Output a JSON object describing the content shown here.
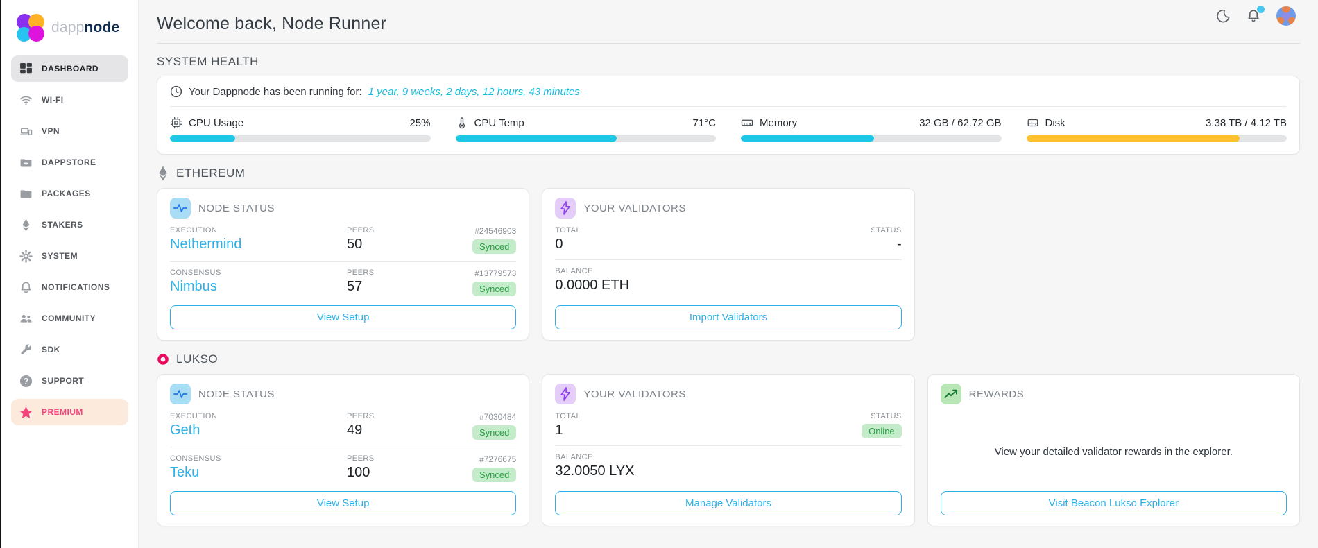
{
  "colors": {
    "accent": "#2cb1e8",
    "progress_cyan": "#1dc7e6",
    "progress_warning": "#fcc12c",
    "success_bg": "#c5ecca",
    "success_text": "#2aa147",
    "premium_pink": "#f5447c",
    "premium_bg": "#fcebdd",
    "lukso_magenta": "#e80b5e",
    "notification_dot": "#46c8f1"
  },
  "brand": {
    "logo_light": "dapp",
    "logo_bold": "node"
  },
  "sidebar": {
    "items": [
      {
        "label": "DASHBOARD",
        "icon": "grid-icon",
        "active": true
      },
      {
        "label": "WI-FI",
        "icon": "wifi-icon"
      },
      {
        "label": "VPN",
        "icon": "devices-icon"
      },
      {
        "label": "DAPPSTORE",
        "icon": "folder-plus-icon"
      },
      {
        "label": "PACKAGES",
        "icon": "folder-icon"
      },
      {
        "label": "STAKERS",
        "icon": "ethereum-icon"
      },
      {
        "label": "SYSTEM",
        "icon": "gear-icon"
      },
      {
        "label": "NOTIFICATIONS",
        "icon": "bell-icon"
      },
      {
        "label": "COMMUNITY",
        "icon": "people-icon"
      },
      {
        "label": "SDK",
        "icon": "wrench-icon"
      },
      {
        "label": "SUPPORT",
        "icon": "question-icon"
      },
      {
        "label": "PREMIUM",
        "icon": "star-icon",
        "premium": true
      }
    ]
  },
  "topbar": {
    "icons": [
      "moon-icon",
      "bell-icon",
      "avatar"
    ]
  },
  "header": {
    "title": "Welcome back, Node Runner"
  },
  "system_health": {
    "title": "SYSTEM HEALTH",
    "uptime_prefix": "Your Dappnode has been running for:",
    "uptime_value": "1 year, 9 weeks, 2 days, 12 hours, 43 minutes",
    "stats": [
      {
        "label": "CPU Usage",
        "value": "25%",
        "percent": 25,
        "color": "#1dc7e6",
        "icon": "cpu-icon"
      },
      {
        "label": "CPU Temp",
        "value": "71°C",
        "percent": 62,
        "color": "#1dc7e6",
        "icon": "thermometer-icon"
      },
      {
        "label": "Memory",
        "value": "32 GB / 62.72 GB",
        "percent": 51,
        "color": "#1dc7e6",
        "icon": "memory-icon"
      },
      {
        "label": "Disk",
        "value": "3.38 TB / 4.12 TB",
        "percent": 82,
        "color": "#fcc12c",
        "icon": "disk-icon"
      }
    ]
  },
  "networks": [
    {
      "name": "ETHEREUM",
      "icon": "ethereum-icon",
      "node_status": {
        "title": "NODE STATUS",
        "rows": [
          {
            "kind_label": "EXECUTION",
            "client": "Nethermind",
            "peers_label": "PEERS",
            "peers": "50",
            "block": "#24546903",
            "status": "Synced"
          },
          {
            "kind_label": "CONSENSUS",
            "client": "Nimbus",
            "peers_label": "PEERS",
            "peers": "57",
            "block": "#13779573",
            "status": "Synced"
          }
        ],
        "button_label": "View Setup"
      },
      "validators": {
        "title": "YOUR VALIDATORS",
        "total_label": "TOTAL",
        "total_value": "0",
        "status_label": "STATUS",
        "status_value": "-",
        "balance_label": "BALANCE",
        "balance_value": "0.0000 ETH",
        "button_label": "Import Validators"
      }
    },
    {
      "name": "LUKSO",
      "icon": "lukso-icon",
      "node_status": {
        "title": "NODE STATUS",
        "rows": [
          {
            "kind_label": "EXECUTION",
            "client": "Geth",
            "peers_label": "PEERS",
            "peers": "49",
            "block": "#7030484",
            "status": "Synced"
          },
          {
            "kind_label": "CONSENSUS",
            "client": "Teku",
            "peers_label": "PEERS",
            "peers": "100",
            "block": "#7276675",
            "status": "Synced"
          }
        ],
        "button_label": "View Setup"
      },
      "validators": {
        "title": "YOUR VALIDATORS",
        "total_label": "TOTAL",
        "total_value": "1",
        "status_label": "STATUS",
        "status_value": "Online",
        "balance_label": "BALANCE",
        "balance_value": "32.0050 LYX",
        "button_label": "Manage Validators"
      },
      "rewards": {
        "title": "REWARDS",
        "text": "View your detailed validator rewards in the explorer.",
        "button_label": "Visit Beacon Lukso Explorer"
      }
    }
  ]
}
